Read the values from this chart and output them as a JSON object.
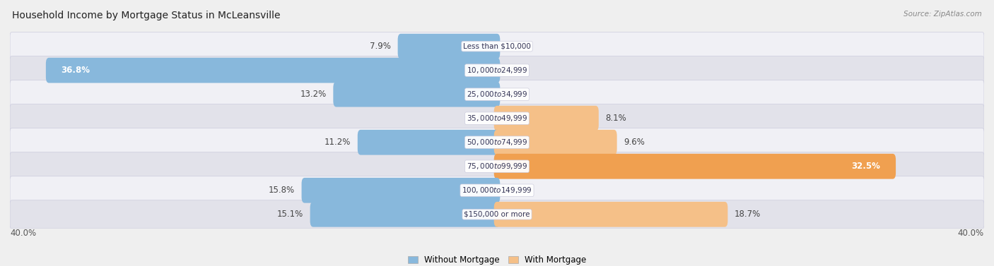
{
  "title": "Household Income by Mortgage Status in McLeansville",
  "source": "Source: ZipAtlas.com",
  "categories": [
    "Less than $10,000",
    "$10,000 to $24,999",
    "$25,000 to $34,999",
    "$35,000 to $49,999",
    "$50,000 to $74,999",
    "$75,000 to $99,999",
    "$100,000 to $149,999",
    "$150,000 or more"
  ],
  "without_mortgage": [
    7.9,
    36.8,
    13.2,
    0.0,
    11.2,
    0.0,
    15.8,
    15.1
  ],
  "with_mortgage": [
    0.0,
    0.0,
    0.0,
    8.1,
    9.6,
    32.5,
    0.0,
    18.7
  ],
  "without_mortgage_color": "#88b8dc",
  "with_mortgage_color": "#f5c088",
  "with_mortgage_color_strong": "#f0a050",
  "row_bg_light": "#f0f0f5",
  "row_bg_dark": "#e2e2ea",
  "axis_limit": 40.0,
  "legend_without": "Without Mortgage",
  "legend_with": "With Mortgage",
  "title_fontsize": 10,
  "source_fontsize": 7.5,
  "bar_label_fontsize": 8.5,
  "category_fontsize": 7.5,
  "legend_fontsize": 8.5,
  "strong_orange_threshold": 20.0
}
